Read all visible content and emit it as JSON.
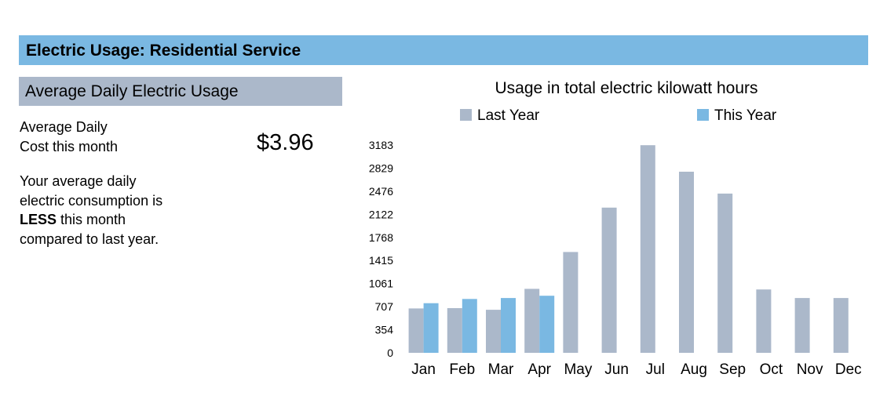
{
  "header": {
    "title": "Electric Usage: Residential Service"
  },
  "section": {
    "title": "Average Daily Electric Usage"
  },
  "summary": {
    "cost_label_line1": "Average Daily",
    "cost_label_line2": "Cost this month",
    "cost_value": "$3.96",
    "compare_line1": "Your average daily",
    "compare_line2": "electric consumption is",
    "compare_bold": "LESS",
    "compare_line3_rest": " this month",
    "compare_line4": "compared to last year."
  },
  "colors": {
    "header_bar": "#7ab8e2",
    "section_bar": "#abb8ca",
    "last_year": "#abb8ca",
    "this_year": "#7ab8e2"
  },
  "chart_data": {
    "type": "bar",
    "title": "Usage in total electric kilowatt hours",
    "xlabel": "",
    "ylabel": "",
    "categories": [
      "Jan",
      "Feb",
      "Mar",
      "Apr",
      "May",
      "Jun",
      "Jul",
      "Aug",
      "Sep",
      "Oct",
      "Nov",
      "Dec"
    ],
    "yticks": [
      "0",
      "354",
      "707",
      "1061",
      "1415",
      "1768",
      "2122",
      "2476",
      "2829",
      "3183"
    ],
    "ylim": [
      0,
      3183
    ],
    "grid": false,
    "legend_position": "top",
    "series": [
      {
        "name": "Last Year",
        "color": "#abb8ca",
        "values": [
          680,
          685,
          660,
          980,
          1545,
          2225,
          3180,
          2775,
          2440,
          970,
          840,
          840
        ]
      },
      {
        "name": "This Year",
        "color": "#7ab8e2",
        "values": [
          760,
          825,
          840,
          875,
          null,
          null,
          null,
          null,
          null,
          null,
          null,
          null
        ]
      }
    ]
  }
}
